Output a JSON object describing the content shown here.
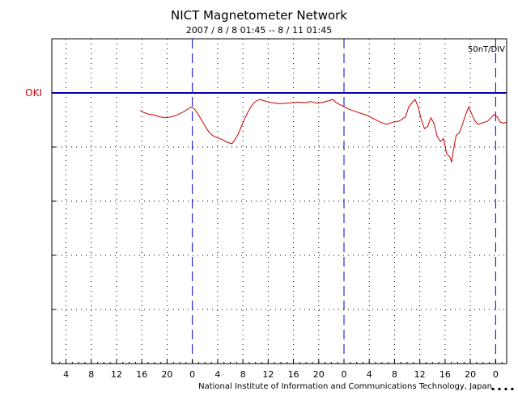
{
  "chart_data": {
    "type": "line",
    "title": "NICT Magnetometer Network",
    "subtitle": "2007 / 8 / 8   01:45 --  8 / 11   01:45",
    "scale_label": "50nT/DIV",
    "footer": "National Institute of Information and Communications Technology, Japan",
    "footer_mark": "▪ ▪ ▪ ▪",
    "x_tick_labels": [
      "4",
      "8",
      "12",
      "16",
      "20",
      "0",
      "4",
      "8",
      "12",
      "16",
      "20",
      "0",
      "4",
      "8",
      "12",
      "16",
      "20",
      "0"
    ],
    "x_tick_hours": [
      2.25,
      6.25,
      10.25,
      14.25,
      18.25,
      22.25,
      26.25,
      30.25,
      34.25,
      38.25,
      42.25,
      46.25,
      50.25,
      54.25,
      58.25,
      62.25,
      66.25,
      70.25
    ],
    "day_boundary_hours": [
      22.25,
      46.25,
      70.25
    ],
    "xlim": [
      0,
      72
    ],
    "y_divisions": 6,
    "grid": true,
    "legend": "none",
    "colors": {
      "series": "#cc0000",
      "baseline": "#0000aa",
      "day_line": "#0000cc",
      "grid": "#000000"
    },
    "series": [
      {
        "name": "OKI",
        "baseline_div": 1,
        "offset_div": [
          [
            14.0,
            0.32
          ],
          [
            14.5,
            0.36
          ],
          [
            15.0,
            0.38
          ],
          [
            15.5,
            0.4
          ],
          [
            16.0,
            0.4
          ],
          [
            16.5,
            0.42
          ],
          [
            17.0,
            0.44
          ],
          [
            17.5,
            0.45
          ],
          [
            18.0,
            0.46
          ],
          [
            18.5,
            0.45
          ],
          [
            19.0,
            0.44
          ],
          [
            19.5,
            0.42
          ],
          [
            20.0,
            0.4
          ],
          [
            20.5,
            0.37
          ],
          [
            21.0,
            0.34
          ],
          [
            21.5,
            0.3
          ],
          [
            22.0,
            0.26
          ],
          [
            22.5,
            0.29
          ],
          [
            23.0,
            0.36
          ],
          [
            23.5,
            0.46
          ],
          [
            24.0,
            0.56
          ],
          [
            24.5,
            0.66
          ],
          [
            25.0,
            0.74
          ],
          [
            25.5,
            0.79
          ],
          [
            26.0,
            0.82
          ],
          [
            26.5,
            0.84
          ],
          [
            27.0,
            0.86
          ],
          [
            27.5,
            0.9
          ],
          [
            28.0,
            0.92
          ],
          [
            28.5,
            0.94
          ],
          [
            29.0,
            0.86
          ],
          [
            29.5,
            0.76
          ],
          [
            30.0,
            0.62
          ],
          [
            30.5,
            0.48
          ],
          [
            31.0,
            0.36
          ],
          [
            31.5,
            0.26
          ],
          [
            32.0,
            0.18
          ],
          [
            32.5,
            0.14
          ],
          [
            33.0,
            0.12
          ],
          [
            33.5,
            0.14
          ],
          [
            34.0,
            0.16
          ],
          [
            35.0,
            0.18
          ],
          [
            36.0,
            0.2
          ],
          [
            37.0,
            0.19
          ],
          [
            38.0,
            0.18
          ],
          [
            39.0,
            0.17
          ],
          [
            40.0,
            0.18
          ],
          [
            41.0,
            0.16
          ],
          [
            42.0,
            0.19
          ],
          [
            43.0,
            0.17
          ],
          [
            44.0,
            0.14
          ],
          [
            44.5,
            0.12
          ],
          [
            45.0,
            0.18
          ],
          [
            46.0,
            0.24
          ],
          [
            47.0,
            0.3
          ],
          [
            48.0,
            0.34
          ],
          [
            49.0,
            0.38
          ],
          [
            50.0,
            0.42
          ],
          [
            51.0,
            0.48
          ],
          [
            52.0,
            0.54
          ],
          [
            53.0,
            0.58
          ],
          [
            54.0,
            0.54
          ],
          [
            55.0,
            0.52
          ],
          [
            56.0,
            0.44
          ],
          [
            56.5,
            0.26
          ],
          [
            57.0,
            0.18
          ],
          [
            57.5,
            0.12
          ],
          [
            58.0,
            0.26
          ],
          [
            58.5,
            0.5
          ],
          [
            59.0,
            0.66
          ],
          [
            59.5,
            0.62
          ],
          [
            60.0,
            0.46
          ],
          [
            60.5,
            0.56
          ],
          [
            61.0,
            0.8
          ],
          [
            61.5,
            0.9
          ],
          [
            62.0,
            0.84
          ],
          [
            62.5,
            1.12
          ],
          [
            63.0,
            1.18
          ],
          [
            63.3,
            1.28
          ],
          [
            63.6,
            1.04
          ],
          [
            64.0,
            0.78
          ],
          [
            64.5,
            0.74
          ],
          [
            65.0,
            0.58
          ],
          [
            65.5,
            0.4
          ],
          [
            66.0,
            0.26
          ],
          [
            66.5,
            0.4
          ],
          [
            67.0,
            0.52
          ],
          [
            67.5,
            0.58
          ],
          [
            68.0,
            0.56
          ],
          [
            68.5,
            0.54
          ],
          [
            69.0,
            0.52
          ],
          [
            69.5,
            0.46
          ],
          [
            70.0,
            0.4
          ],
          [
            70.5,
            0.44
          ],
          [
            71.0,
            0.54
          ],
          [
            71.5,
            0.56
          ],
          [
            72.0,
            0.54
          ]
        ]
      }
    ]
  }
}
